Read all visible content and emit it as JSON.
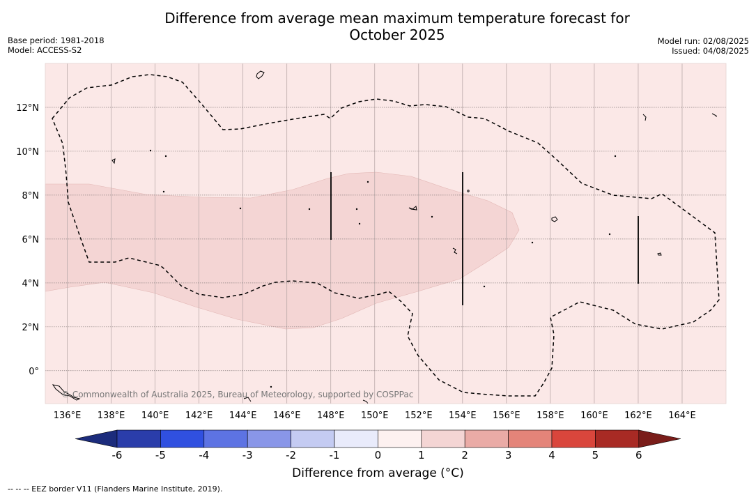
{
  "title": {
    "line1": "Difference from average mean maximum temperature forecast for",
    "line2": "October 2025"
  },
  "meta_left": {
    "line1": "Base period: 1981-2018",
    "line2": "Model: ACCESS-S2"
  },
  "meta_right": {
    "line1": "Model run: 02/08/2025",
    "line2": "Issued: 04/08/2025"
  },
  "map": {
    "lon_range": [
      135,
      166
    ],
    "lat_range": [
      -1.5,
      14
    ],
    "lon_ticks": [
      "136°E",
      "138°E",
      "140°E",
      "142°E",
      "144°E",
      "146°E",
      "148°E",
      "150°E",
      "152°E",
      "154°E",
      "156°E",
      "158°E",
      "160°E",
      "162°E",
      "164°E"
    ],
    "lat_ticks": [
      "0°",
      "2°N",
      "4°N",
      "6°N",
      "8°N",
      "10°N",
      "12°N"
    ],
    "background_class": "0 to 1",
    "background_color": "#fbe8e7",
    "anomaly_patch_class": "1 to 2",
    "anomaly_patch_color": "#f4d5d4",
    "copyright": "© Commonwealth of Australia 2025, Bureau of Meteorology, supported by COSPPac"
  },
  "colorbar": {
    "label": "Difference from average (°C)",
    "tick_labels": [
      "-6",
      "-5",
      "-4",
      "-3",
      "-2",
      "-1",
      "0",
      "1",
      "2",
      "3",
      "4",
      "5",
      "6"
    ],
    "colors": [
      "#1c2c7c",
      "#2a3daa",
      "#3050e0",
      "#5d73e3",
      "#8996e8",
      "#c4cbf2",
      "#e9ebfb",
      "#fdf1f0",
      "#f4d5d4",
      "#eaaba6",
      "#e48479",
      "#d9463c",
      "#a82a24",
      "#7a1d1a"
    ]
  },
  "footnote": "--  --  -- EEZ border V11 (Flanders Marine Institute, 2019)."
}
